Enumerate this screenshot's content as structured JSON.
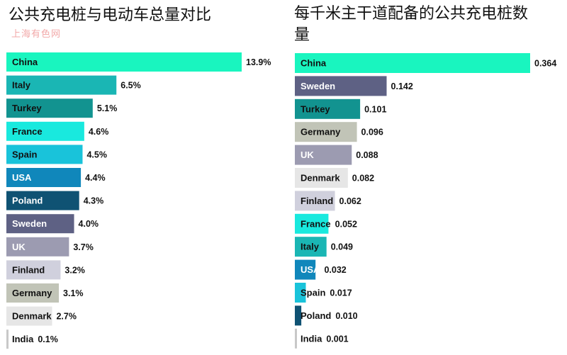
{
  "watermark": "上海有色网",
  "chart_data": [
    {
      "type": "bar",
      "orientation": "horizontal",
      "title": "公共充电桩与电动车总量对比",
      "categories": [
        "China",
        "Italy",
        "Turkey",
        "France",
        "Spain",
        "USA",
        "Poland",
        "Sweden",
        "UK",
        "Finland",
        "Germany",
        "Denmark",
        "India"
      ],
      "values": [
        13.9,
        6.5,
        5.1,
        4.6,
        4.5,
        4.4,
        4.3,
        4.0,
        3.7,
        3.2,
        3.1,
        2.7,
        0.1
      ],
      "value_labels": [
        "13.9%",
        "6.5%",
        "5.1%",
        "4.6%",
        "4.5%",
        "4.4%",
        "4.3%",
        "4.0%",
        "3.7%",
        "3.2%",
        "3.1%",
        "2.7%",
        "0.1%"
      ],
      "colors": [
        "#19f5bf",
        "#1ab6b4",
        "#129390",
        "#19e9de",
        "#19c3da",
        "#1087bb",
        "#0f5273",
        "#5e6184",
        "#9c9bb1",
        "#d0d0dd",
        "#c1c4b7",
        "#e6e6e6",
        "#c8c8c8"
      ],
      "label_colors": [
        "#111111",
        "#111111",
        "#111111",
        "#111111",
        "#111111",
        "#ffffff",
        "#ffffff",
        "#ffffff",
        "#ffffff",
        "#111111",
        "#111111",
        "#111111",
        "#111111"
      ],
      "xlim": [
        0,
        13.9
      ]
    },
    {
      "type": "bar",
      "orientation": "horizontal",
      "title": "每千米主干道配备的公共充电桩数量",
      "categories": [
        "China",
        "Sweden",
        "Turkey",
        "Germany",
        "UK",
        "Denmark",
        "Finland",
        "France",
        "Italy",
        "USA",
        "Spain",
        "Poland",
        "India"
      ],
      "values": [
        0.364,
        0.142,
        0.101,
        0.096,
        0.088,
        0.082,
        0.062,
        0.052,
        0.049,
        0.032,
        0.017,
        0.01,
        0.001
      ],
      "value_labels": [
        "0.364",
        "0.142",
        "0.101",
        "0.096",
        "0.088",
        "0.082",
        "0.062",
        "0.052",
        "0.049",
        "0.032",
        "0.017",
        "0.010",
        "0.001"
      ],
      "colors": [
        "#19f5bf",
        "#5e6184",
        "#129390",
        "#c1c4b7",
        "#9c9bb1",
        "#e6e6e6",
        "#d0d0dd",
        "#19e9de",
        "#1ab6b4",
        "#1087bb",
        "#19c3da",
        "#0f5273",
        "#c8c8c8"
      ],
      "label_colors": [
        "#111111",
        "#ffffff",
        "#111111",
        "#111111",
        "#ffffff",
        "#111111",
        "#111111",
        "#111111",
        "#111111",
        "#ffffff",
        "#111111",
        "#111111",
        "#111111"
      ],
      "xlim": [
        0,
        0.364
      ]
    }
  ]
}
